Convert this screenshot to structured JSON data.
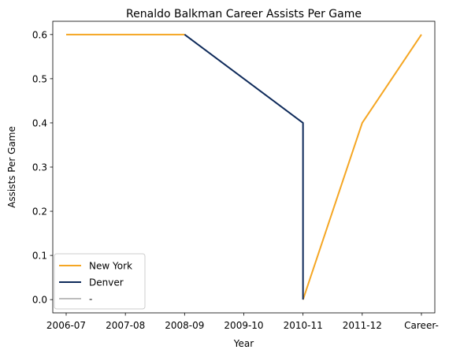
{
  "chart_data": {
    "type": "line",
    "title": "Renaldo Balkman Career Assists Per Game",
    "xlabel": "Year",
    "ylabel": "Assists Per Game",
    "categories": [
      "2006-07",
      "2007-08",
      "2008-09",
      "2009-10",
      "2010-11",
      "2011-12",
      "Career-"
    ],
    "ylim": [
      -0.03,
      0.63
    ],
    "yticks": [
      0.0,
      0.1,
      0.2,
      0.3,
      0.4,
      0.5,
      0.6
    ],
    "ytick_labels": [
      "0.0",
      "0.1",
      "0.2",
      "0.3",
      "0.4",
      "0.5",
      "0.6"
    ],
    "grid": false,
    "legend_position": "lower-left",
    "series": [
      {
        "name": "New York",
        "color": "#F5A623",
        "segments": [
          [
            {
              "x": "2006-07",
              "y": 0.6
            },
            {
              "x": "2008-09",
              "y": 0.6
            }
          ],
          [
            {
              "x": "2010-11",
              "y": 0.0
            },
            {
              "x": "2011-12",
              "y": 0.4
            },
            {
              "x": "Career-",
              "y": 0.6
            }
          ]
        ]
      },
      {
        "name": "Denver",
        "color": "#0E2A5A",
        "segments": [
          [
            {
              "x": "2008-09",
              "y": 0.6
            },
            {
              "x": "2010-11",
              "y": 0.4
            },
            {
              "x": "2010-11",
              "y": 0.0
            }
          ]
        ]
      },
      {
        "name": "-",
        "color": "#BDBDBD",
        "segments": []
      }
    ]
  }
}
